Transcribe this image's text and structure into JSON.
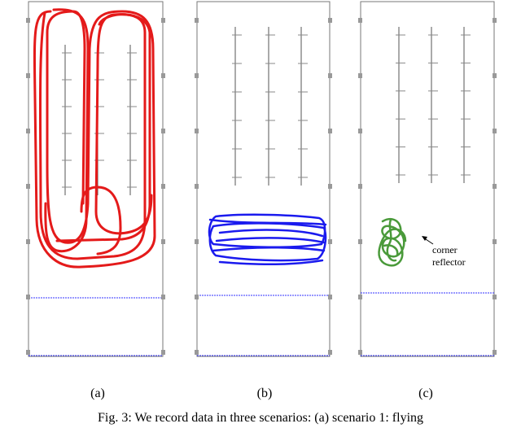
{
  "figure": {
    "panels": [
      {
        "label": "(a)"
      },
      {
        "label": "(b)"
      },
      {
        "label": "(c)"
      }
    ],
    "annotation": {
      "lines": [
        "corner",
        "reflector"
      ]
    },
    "caption": "Fig. 3: We record data in three scenarios: (a) scenario 1: flying"
  }
}
